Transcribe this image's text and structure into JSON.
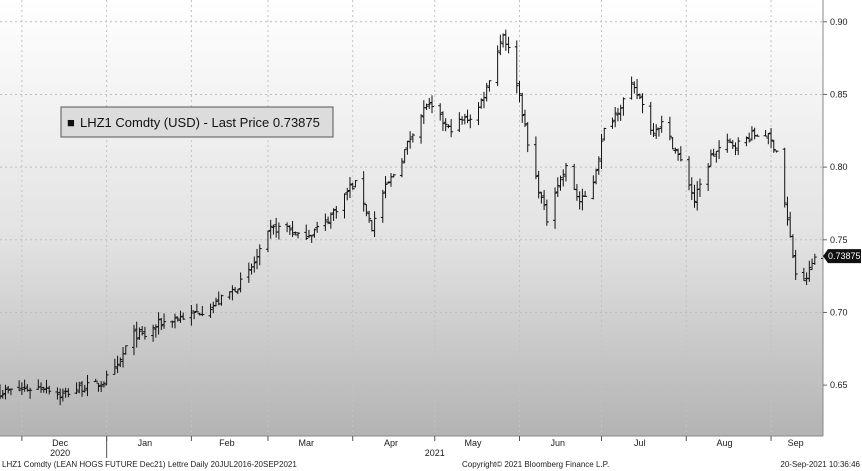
{
  "chart_data": {
    "type": "ohlc",
    "title": "",
    "legend": {
      "marker": "■",
      "text": "LHZ1 Comdty (USD) - Last Price 0.73875",
      "placement": "top-left"
    },
    "last_price_label": "0.73875",
    "last_price": 0.73875,
    "y_axis": {
      "side": "right",
      "ylim": [
        0.615,
        0.915
      ],
      "ticks": [
        0.65,
        0.7,
        0.75,
        0.8,
        0.85,
        0.9
      ],
      "tick_labels": [
        "0.65",
        "0.70",
        "0.75",
        "0.80",
        "0.85",
        "0.90"
      ]
    },
    "x_axis": {
      "start": "2020-11-23",
      "end": "2021-09-20",
      "month_labels": [
        {
          "date": "2020-12-15",
          "label": "Dec"
        },
        {
          "date": "2021-01-15",
          "label": "Jan"
        },
        {
          "date": "2021-02-14",
          "label": "Feb"
        },
        {
          "date": "2021-03-15",
          "label": "Mar"
        },
        {
          "date": "2021-04-15",
          "label": "Apr"
        },
        {
          "date": "2021-05-15",
          "label": "May"
        },
        {
          "date": "2021-06-15",
          "label": "Jun"
        },
        {
          "date": "2021-07-15",
          "label": "Jul"
        },
        {
          "date": "2021-08-15",
          "label": "Aug"
        },
        {
          "date": "2021-09-10",
          "label": "Sep"
        }
      ],
      "month_separators": [
        "2020-12-01",
        "2021-01-01",
        "2021-02-01",
        "2021-03-01",
        "2021-04-01",
        "2021-05-01",
        "2021-06-01",
        "2021-07-01",
        "2021-08-01",
        "2021-09-01"
      ],
      "year_labels": [
        {
          "date": "2020-12-15",
          "label": "2020"
        },
        {
          "date": "2021-05-01",
          "label": "2021"
        }
      ],
      "year_separator": "2021-01-01"
    },
    "grid": true,
    "series": [
      {
        "name": "LHZ1 Comdty",
        "path": [
          [
            "2020-11-23",
            0.645
          ],
          [
            "2020-12-01",
            0.647
          ],
          [
            "2020-12-10",
            0.649
          ],
          [
            "2020-12-15",
            0.643
          ],
          [
            "2020-12-22",
            0.648
          ],
          [
            "2020-12-30",
            0.651
          ],
          [
            "2021-01-05",
            0.662
          ],
          [
            "2021-01-10",
            0.685
          ],
          [
            "2021-01-15",
            0.684
          ],
          [
            "2021-01-20",
            0.692
          ],
          [
            "2021-01-26",
            0.696
          ],
          [
            "2021-02-01",
            0.698
          ],
          [
            "2021-02-10",
            0.706
          ],
          [
            "2021-02-16",
            0.715
          ],
          [
            "2021-02-21",
            0.724
          ],
          [
            "2021-02-26",
            0.741
          ],
          [
            "2021-03-02",
            0.757
          ],
          [
            "2021-03-08",
            0.759
          ],
          [
            "2021-03-12",
            0.752
          ],
          [
            "2021-03-17",
            0.755
          ],
          [
            "2021-03-22",
            0.762
          ],
          [
            "2021-03-26",
            0.772
          ],
          [
            "2021-03-31",
            0.786
          ],
          [
            "2021-04-03",
            0.789
          ],
          [
            "2021-04-08",
            0.758
          ],
          [
            "2021-04-12",
            0.782
          ],
          [
            "2021-04-18",
            0.802
          ],
          [
            "2021-04-23",
            0.825
          ],
          [
            "2021-04-28",
            0.843
          ],
          [
            "2021-05-02",
            0.836
          ],
          [
            "2021-05-06",
            0.826
          ],
          [
            "2021-05-11",
            0.832
          ],
          [
            "2021-05-16",
            0.836
          ],
          [
            "2021-05-20",
            0.855
          ],
          [
            "2021-05-23",
            0.875
          ],
          [
            "2021-05-26",
            0.892
          ],
          [
            "2021-05-29",
            0.875
          ],
          [
            "2021-06-01",
            0.85
          ],
          [
            "2021-06-04",
            0.815
          ],
          [
            "2021-06-08",
            0.785
          ],
          [
            "2021-06-11",
            0.764
          ],
          [
            "2021-06-14",
            0.785
          ],
          [
            "2021-06-18",
            0.799
          ],
          [
            "2021-06-23",
            0.776
          ],
          [
            "2021-06-27",
            0.782
          ],
          [
            "2021-07-02",
            0.825
          ],
          [
            "2021-07-07",
            0.84
          ],
          [
            "2021-07-12",
            0.855
          ],
          [
            "2021-07-16",
            0.845
          ],
          [
            "2021-07-19",
            0.825
          ],
          [
            "2021-07-23",
            0.83
          ],
          [
            "2021-07-28",
            0.812
          ],
          [
            "2021-08-01",
            0.795
          ],
          [
            "2021-08-04",
            0.777
          ],
          [
            "2021-08-10",
            0.807
          ],
          [
            "2021-08-15",
            0.816
          ],
          [
            "2021-08-20",
            0.816
          ],
          [
            "2021-08-25",
            0.822
          ],
          [
            "2021-08-30",
            0.823
          ],
          [
            "2021-09-03",
            0.812
          ],
          [
            "2021-09-07",
            0.763
          ],
          [
            "2021-09-10",
            0.727
          ],
          [
            "2021-09-13",
            0.72
          ],
          [
            "2021-09-17",
            0.738
          ],
          [
            "2021-09-20",
            0.739
          ]
        ]
      }
    ]
  },
  "footer": {
    "left": "LHZ1 Comdty (LEAN HOGS FUTURE  Dec21) Lettre  Daily 20JUL2016-20SEP2021",
    "center": "Copyright© 2021 Bloomberg Finance L.P.",
    "right": "20-Sep-2021 10:36:46"
  }
}
